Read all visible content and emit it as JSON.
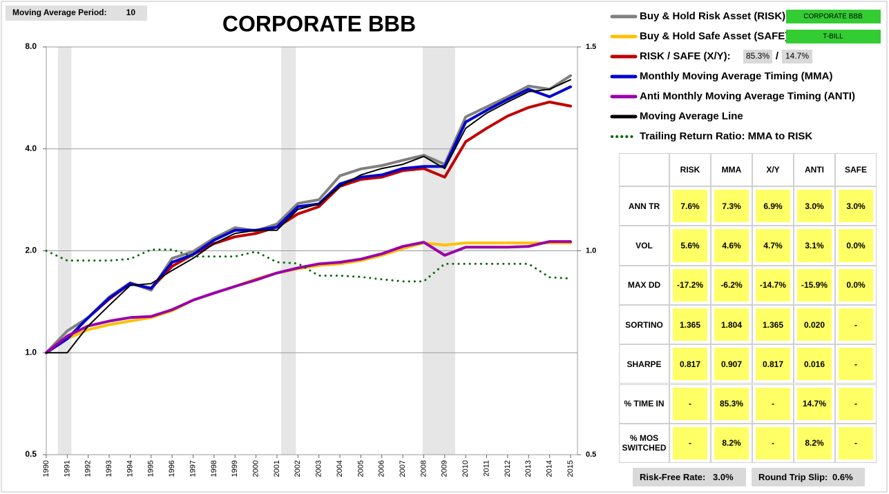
{
  "settings": {
    "label": "Moving Average Period:",
    "value": 10
  },
  "chart_data": {
    "type": "line",
    "title": "CORPORATE BBB",
    "x": [
      1990,
      1991,
      1992,
      1993,
      1994,
      1995,
      1996,
      1997,
      1998,
      1999,
      2000,
      2001,
      2002,
      2003,
      2004,
      2005,
      2006,
      2007,
      2008,
      2009,
      2010,
      2011,
      2012,
      2013,
      2014,
      2015
    ],
    "xlim": [
      1990,
      2015.33
    ],
    "xticks": [
      1990,
      1991,
      1992,
      1993,
      1994,
      1995,
      1996,
      1997,
      1998,
      1999,
      2000,
      2001,
      2002,
      2003,
      2004,
      2005,
      2006,
      2007,
      2008,
      2009,
      2010,
      2011,
      2012,
      2013,
      2014,
      2015
    ],
    "ylim": [
      0.5,
      8
    ],
    "log_y": true,
    "yticks": [
      {
        "value": 0.5,
        "label": "0.5"
      },
      {
        "value": 1,
        "label": "1.0"
      },
      {
        "value": 2,
        "label": "2.0"
      },
      {
        "value": 4,
        "label": "4.0"
      },
      {
        "value": 8,
        "label": "8.0"
      }
    ],
    "y2lim": [
      0.5,
      1.5
    ],
    "y2ticks": [
      0.5,
      {
        "value": 1,
        "label": "1.0"
      },
      1.5
    ],
    "grid": true,
    "recessions": [
      [
        1990.55,
        1991.2
      ],
      [
        2001.2,
        2001.9
      ],
      [
        2007.95,
        2009.5
      ]
    ],
    "series": [
      {
        "name": "Buy & Hold Risk Asset (RISK):",
        "color": "#808080",
        "values": [
          1.0,
          1.16,
          1.27,
          1.46,
          1.61,
          1.53,
          1.9,
          1.99,
          2.18,
          2.34,
          2.29,
          2.4,
          2.76,
          2.83,
          3.33,
          3.49,
          3.57,
          3.7,
          3.83,
          3.6,
          4.97,
          5.32,
          5.7,
          6.13,
          6.0,
          6.58
        ]
      },
      {
        "name": "Buy & Hold Safe Asset (SAFE):",
        "color": "#ffc000",
        "values": [
          1.0,
          1.1,
          1.17,
          1.21,
          1.24,
          1.27,
          1.33,
          1.43,
          1.5,
          1.57,
          1.65,
          1.72,
          1.77,
          1.81,
          1.83,
          1.87,
          1.94,
          2.03,
          2.11,
          2.08,
          2.11,
          2.11,
          2.11,
          2.11,
          2.11,
          2.11
        ]
      },
      {
        "name": "RISK / SAFE (X/Y):",
        "color": "#c00000",
        "values": [
          1.0,
          1.1,
          1.27,
          1.44,
          1.6,
          1.55,
          1.8,
          1.95,
          2.1,
          2.2,
          2.25,
          2.35,
          2.57,
          2.7,
          3.1,
          3.25,
          3.3,
          3.45,
          3.5,
          3.3,
          4.2,
          4.6,
          5.0,
          5.3,
          5.5,
          5.35
        ]
      },
      {
        "name": "Monthly Moving Average Timing (MMA)",
        "color": "#0000cc",
        "values": [
          1.0,
          1.1,
          1.27,
          1.45,
          1.6,
          1.55,
          1.85,
          1.95,
          2.15,
          2.3,
          2.3,
          2.35,
          2.7,
          2.75,
          3.15,
          3.3,
          3.35,
          3.5,
          3.55,
          3.55,
          4.8,
          5.2,
          5.6,
          6.0,
          5.7,
          6.1
        ]
      },
      {
        "name": "Anti Monthly Moving Average Timing (ANTI)",
        "color": "#9900aa",
        "values": [
          1.0,
          1.12,
          1.2,
          1.24,
          1.27,
          1.28,
          1.34,
          1.43,
          1.5,
          1.57,
          1.64,
          1.72,
          1.78,
          1.83,
          1.85,
          1.89,
          1.96,
          2.06,
          2.12,
          1.94,
          2.05,
          2.05,
          2.05,
          2.06,
          2.13,
          2.13
        ]
      },
      {
        "name": "Moving Average Line",
        "color": "#000000",
        "values": [
          1.0,
          1.0,
          1.2,
          1.38,
          1.58,
          1.6,
          1.75,
          1.9,
          2.1,
          2.25,
          2.3,
          2.3,
          2.65,
          2.75,
          3.1,
          3.35,
          3.5,
          3.6,
          3.8,
          3.5,
          4.6,
          5.1,
          5.5,
          5.9,
          6.0,
          6.4
        ]
      },
      {
        "name": "Trailing Return Ratio: MMA to RISK",
        "color": "#006600",
        "style": "dotted",
        "axis": "y2",
        "values": [
          1.0,
          0.976,
          0.976,
          0.976,
          0.98,
          1.003,
          1.003,
          0.986,
          0.986,
          0.986,
          0.998,
          0.972,
          0.969,
          0.939,
          0.939,
          0.936,
          0.93,
          0.925,
          0.925,
          0.968,
          0.968,
          0.968,
          0.968,
          0.968,
          0.935,
          0.932
        ]
      }
    ]
  },
  "assets": {
    "risk": "CORPORATE BBB",
    "safe": "T-BILL",
    "risk_share": "85.3%",
    "separator": "/",
    "safe_share": "14.7%"
  },
  "table": {
    "columns": [
      "RISK",
      "MMA",
      "X/Y",
      "ANTI",
      "SAFE"
    ],
    "rows": [
      {
        "label": "ANN TR",
        "cells": [
          "7.6%",
          "7.3%",
          "6.9%",
          "3.0%",
          "3.0%"
        ]
      },
      {
        "label": "VOL",
        "cells": [
          "5.6%",
          "4.6%",
          "4.7%",
          "3.1%",
          "0.0%"
        ]
      },
      {
        "label": "MAX DD",
        "cells": [
          "-17.2%",
          "-6.2%",
          "-14.7%",
          "-15.9%",
          "0.0%"
        ]
      },
      {
        "label": "SORTINO",
        "cells": [
          "1.365",
          "1.804",
          "1.365",
          "0.020",
          "-"
        ]
      },
      {
        "label": "SHARPE",
        "cells": [
          "0.817",
          "0.907",
          "0.817",
          "0.016",
          "-"
        ]
      },
      {
        "label": "% TIME IN",
        "cells": [
          "-",
          "85.3%",
          "-",
          "14.7%",
          "-"
        ]
      },
      {
        "label": "% MOS SWITCHED",
        "cells": [
          "-",
          "8.2%",
          "-",
          "8.2%",
          "-"
        ]
      }
    ]
  },
  "footer": {
    "rate_label": "Risk-Free Rate:",
    "rate": "3.0%",
    "slip_label": "Round Trip Slip:",
    "slip": "0.6%"
  }
}
